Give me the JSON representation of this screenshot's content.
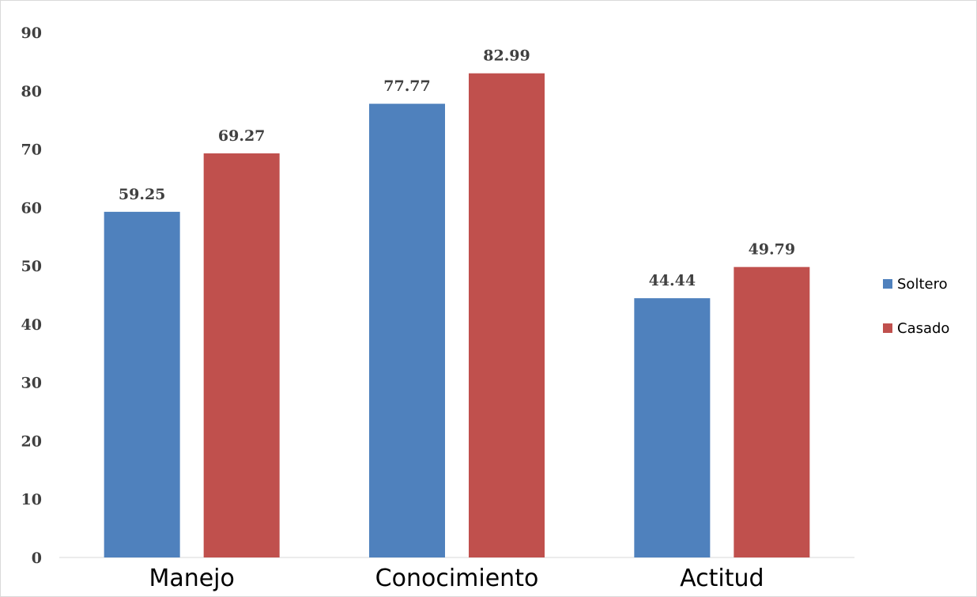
{
  "chart_data": {
    "type": "bar",
    "categories": [
      "Manejo",
      "Conocimiento",
      "Actitud"
    ],
    "series": [
      {
        "name": "Soltero",
        "values": [
          59.25,
          77.77,
          44.44
        ],
        "color": "#4F81BD"
      },
      {
        "name": "Casado",
        "values": [
          69.27,
          82.99,
          49.79
        ],
        "color": "#C0504D"
      }
    ],
    "data_labels": {
      "Soltero": [
        "59.25",
        "77.77",
        "44.44"
      ],
      "Casado": [
        "69.27",
        "82.99",
        "49.79"
      ]
    },
    "yticks": [
      "0",
      "10",
      "20",
      "30",
      "40",
      "50",
      "60",
      "70",
      "80",
      "90"
    ],
    "ylim": [
      0,
      90
    ],
    "grid": false,
    "legend_position": "right",
    "title": "",
    "xlabel": "",
    "ylabel": ""
  }
}
